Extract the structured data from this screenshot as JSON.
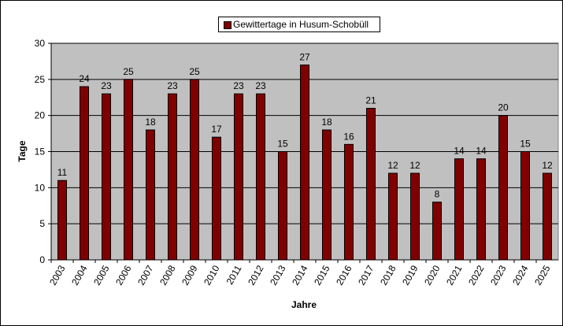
{
  "chart_data": {
    "type": "bar",
    "categories": [
      "2003",
      "2004",
      "2005",
      "2006",
      "2007",
      "2008",
      "2009",
      "2010",
      "2011",
      "2012",
      "2013",
      "2014",
      "2015",
      "2016",
      "2017",
      "2018",
      "2019",
      "2020",
      "2021",
      "2022",
      "2023",
      "2024",
      "2025"
    ],
    "series": [
      {
        "name": "Gewittertage in Husum-Schobüll",
        "values": [
          11,
          24,
          23,
          25,
          18,
          23,
          25,
          17,
          23,
          23,
          15,
          27,
          18,
          16,
          21,
          12,
          12,
          8,
          14,
          14,
          20,
          15,
          12
        ]
      }
    ],
    "title": "",
    "xlabel": "Jahre",
    "ylabel": "Tage",
    "ylim": [
      0,
      30
    ],
    "yticks": [
      0,
      5,
      10,
      15,
      20,
      25,
      30
    ],
    "grid": true,
    "legend_position": "top-center",
    "data_labels": true,
    "colors": {
      "bar": "#800000",
      "plot_background": "#C0C0C0",
      "gridline": "#000000"
    }
  }
}
